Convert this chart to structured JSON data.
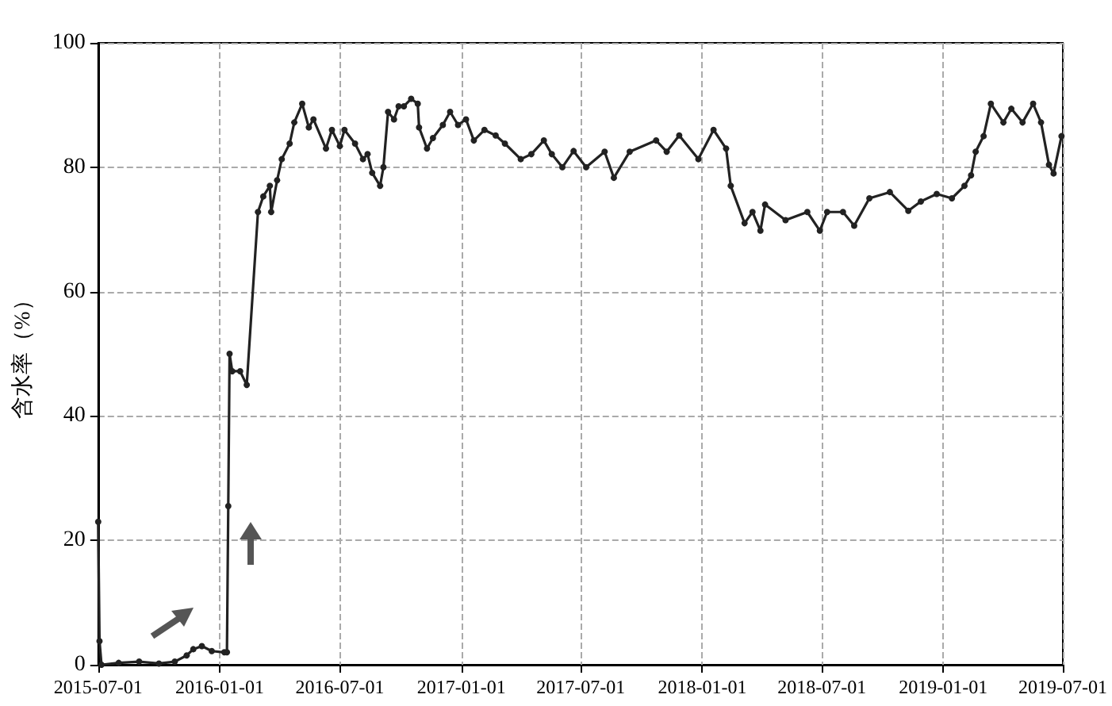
{
  "chart_data": {
    "type": "line",
    "ylabel": "含水率（%）",
    "x": [
      "2015-07-01",
      "2015-07-03",
      "2015-07-06",
      "2015-08-01",
      "2015-09-01",
      "2015-10-01",
      "2015-10-25",
      "2015-11-12",
      "2015-11-22",
      "2015-12-05",
      "2015-12-20",
      "2016-01-08",
      "2016-01-12",
      "2016-01-14",
      "2016-01-16",
      "2016-01-20",
      "2016-02-01",
      "2016-02-11",
      "2016-02-28",
      "2016-03-07",
      "2016-03-17",
      "2016-03-19",
      "2016-03-28",
      "2016-04-04",
      "2016-04-16",
      "2016-04-23",
      "2016-05-05",
      "2016-05-15",
      "2016-05-22",
      "2016-06-10",
      "2016-06-19",
      "2016-07-01",
      "2016-07-08",
      "2016-07-24",
      "2016-08-05",
      "2016-08-12",
      "2016-08-19",
      "2016-08-31",
      "2016-09-05",
      "2016-09-12",
      "2016-09-21",
      "2016-09-28",
      "2016-10-06",
      "2016-10-17",
      "2016-10-27",
      "2016-10-29",
      "2016-11-10",
      "2016-11-19",
      "2016-12-04",
      "2016-12-15",
      "2016-12-27",
      "2017-01-08",
      "2017-01-20",
      "2017-02-05",
      "2017-02-22",
      "2017-03-08",
      "2017-04-01",
      "2017-04-17",
      "2017-05-06",
      "2017-05-18",
      "2017-06-03",
      "2017-06-20",
      "2017-07-09",
      "2017-08-06",
      "2017-08-20",
      "2017-09-13",
      "2017-10-23",
      "2017-11-08",
      "2017-11-27",
      "2017-12-26",
      "2018-01-18",
      "2018-02-06",
      "2018-02-13",
      "2018-03-06",
      "2018-03-18",
      "2018-03-30",
      "2018-04-06",
      "2018-05-07",
      "2018-06-09",
      "2018-06-28",
      "2018-07-09",
      "2018-08-02",
      "2018-08-19",
      "2018-09-11",
      "2018-10-12",
      "2018-11-09",
      "2018-11-28",
      "2018-12-22",
      "2019-01-14",
      "2019-02-02",
      "2019-02-12",
      "2019-02-19",
      "2019-03-03",
      "2019-03-14",
      "2019-04-02",
      "2019-04-14",
      "2019-05-01",
      "2019-05-17",
      "2019-05-29",
      "2019-06-10",
      "2019-06-17",
      "2019-06-29"
    ],
    "series": [
      {
        "color": "#222222",
        "values": [
          23,
          3.8,
          0,
          0.3,
          0.5,
          0.2,
          0.5,
          1.5,
          2.5,
          3,
          2.2,
          2,
          2,
          25.5,
          50,
          47.2,
          47.2,
          45,
          72.8,
          75.3,
          77,
          72.8,
          77.9,
          81.3,
          83.8,
          87.2,
          90.2,
          86.4,
          87.7,
          83,
          86,
          83.4,
          86,
          83.8,
          81.3,
          82.1,
          79.1,
          77,
          80,
          88.9,
          87.7,
          89.8,
          89.8,
          91,
          90.2,
          86.4,
          83,
          84.7,
          86.8,
          88.9,
          86.8,
          87.7,
          84.3,
          86,
          85.1,
          83.8,
          81.3,
          82.1,
          84.3,
          82.1,
          80,
          82.6,
          80,
          82.5,
          78.3,
          82.5,
          84.3,
          82.5,
          85.1,
          81.3,
          86,
          83,
          77,
          71,
          72.8,
          69.8,
          74,
          71.5,
          72.8,
          69.8,
          72.8,
          72.8,
          70.6,
          75,
          76,
          73,
          74.5,
          75.7,
          75,
          77,
          78.7,
          82.5,
          85,
          90.2,
          87.2,
          89.4,
          87.2,
          90.2,
          87.2,
          80.4,
          79,
          85
        ]
      }
    ],
    "xlim": [
      "2015-07-01",
      "2019-07-01"
    ],
    "xticks": [
      "2015-07-01",
      "2016-01-01",
      "2016-07-01",
      "2017-01-01",
      "2017-07-01",
      "2018-01-01",
      "2018-07-01",
      "2019-01-01",
      "2019-07-01"
    ],
    "ylim": [
      0,
      100
    ],
    "yticks": [
      0,
      20,
      40,
      60,
      80,
      100
    ],
    "grid": true,
    "marker": "circle",
    "line_style": "solid"
  }
}
